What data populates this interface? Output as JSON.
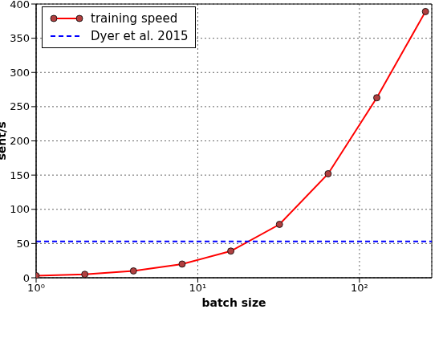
{
  "chart_data": {
    "type": "line",
    "x_label": "batch size",
    "y_label": "sent/s",
    "log": "x",
    "xlim": [
      1,
      280
    ],
    "xticks": [
      {
        "value": 1,
        "label": "10⁰"
      },
      {
        "value": 10,
        "label": "10¹"
      },
      {
        "value": 100,
        "label": "10²"
      }
    ],
    "ylim": [
      0,
      400
    ],
    "yticks": [
      0,
      50,
      100,
      150,
      200,
      250,
      300,
      350,
      400
    ],
    "grid": true,
    "legend": "upper left",
    "series": [
      {
        "name": "training speed",
        "color": "#ff0000",
        "marker": "o",
        "line_style": "solid",
        "x": [
          1,
          2,
          4,
          8,
          16,
          32,
          64,
          128,
          256
        ],
        "values": [
          3,
          5,
          10,
          20,
          39,
          78,
          152,
          263,
          389
        ]
      },
      {
        "name": "Dyer et al. 2015",
        "color": "#0000ff",
        "line_style": "dashed",
        "x": [
          1,
          280
        ],
        "values": [
          53,
          53
        ]
      }
    ]
  }
}
